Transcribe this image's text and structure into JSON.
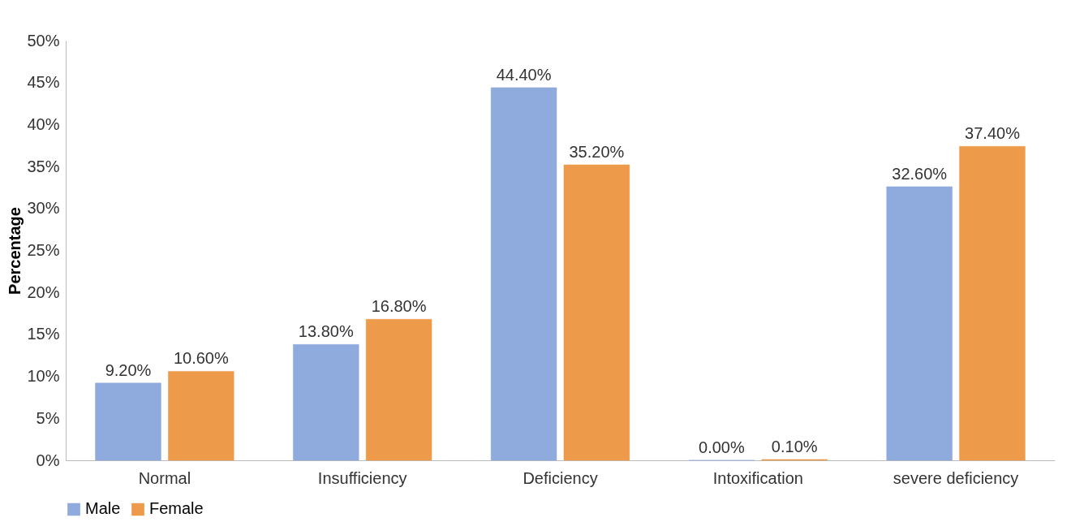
{
  "chart_data": {
    "type": "bar",
    "ylabel": "Percentage",
    "categories": [
      "Normal",
      "Insufficiency",
      "Deficiency",
      "Intoxification",
      "severe deficiency"
    ],
    "series": [
      {
        "name": "Male",
        "color": "#8faadc",
        "values": [
          9.2,
          13.8,
          44.4,
          0.0,
          32.6
        ],
        "value_labels": [
          "9.20%",
          "13.80%",
          "44.40%",
          "0.00%",
          "32.60%"
        ]
      },
      {
        "name": "Female",
        "color": "#ed9a4a",
        "values": [
          10.6,
          16.8,
          35.2,
          0.1,
          37.4
        ],
        "value_labels": [
          "10.60%",
          "16.80%",
          "35.20%",
          "0.10%",
          "37.40%"
        ]
      }
    ],
    "ylim": [
      0,
      50
    ],
    "yticks": [
      {
        "value": 0,
        "label": "0%"
      },
      {
        "value": 5,
        "label": "5%"
      },
      {
        "value": 10,
        "label": "10%"
      },
      {
        "value": 15,
        "label": "15%"
      },
      {
        "value": 20,
        "label": "20%"
      },
      {
        "value": 25,
        "label": "25%"
      },
      {
        "value": 30,
        "label": "30%"
      },
      {
        "value": 35,
        "label": "35%"
      },
      {
        "value": 40,
        "label": "40%"
      },
      {
        "value": 45,
        "label": "45%"
      },
      {
        "value": 50,
        "label": "50%"
      }
    ],
    "grid": false,
    "legend": "bottom"
  }
}
